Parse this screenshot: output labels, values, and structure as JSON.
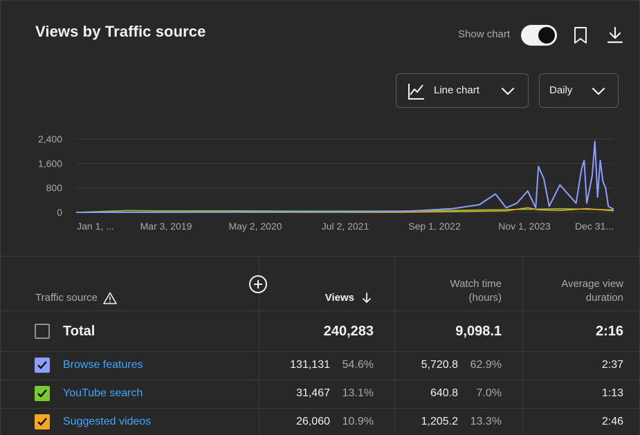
{
  "header": {
    "title": "Views by Traffic source",
    "show_chart_label": "Show chart"
  },
  "controls": {
    "chart_type_label": "Line chart",
    "interval_label": "Daily"
  },
  "colors": {
    "browse": "#8c9eff",
    "search": "#7cc832",
    "suggested": "#f5a623",
    "accent_link": "#3ea6ff"
  },
  "chart_data": {
    "type": "line",
    "y_ticks": [
      "2,400",
      "1,600",
      "800",
      "0"
    ],
    "ylim": [
      0,
      2400
    ],
    "x_ticks": [
      "Jan 1, ...",
      "Mar 3, 2019",
      "May 2, 2020",
      "Jul 2, 2021",
      "Sep 1, 2022",
      "Nov 1, 2023",
      "Dec 31..."
    ],
    "grid": true,
    "series": [
      {
        "key": "browse",
        "color": "#8c9eff",
        "x": [
          0,
          0.55,
          0.62,
          0.7,
          0.75,
          0.78,
          0.8,
          0.82,
          0.84,
          0.855,
          0.86,
          0.87,
          0.88,
          0.9,
          0.93,
          0.94,
          0.945,
          0.95,
          0.96,
          0.965,
          0.97,
          0.975,
          0.98,
          0.985,
          0.99,
          1.0
        ],
        "y": [
          0,
          20,
          40,
          120,
          250,
          600,
          150,
          300,
          700,
          150,
          1500,
          1100,
          200,
          900,
          300,
          1400,
          1700,
          300,
          1200,
          2320,
          500,
          1700,
          1000,
          800,
          200,
          100
        ]
      },
      {
        "key": "search",
        "color": "#7cc832",
        "x": [
          0,
          0.1,
          0.15,
          0.3,
          0.4,
          0.6,
          0.7,
          0.75,
          0.8,
          0.85,
          0.9,
          0.95,
          1.0
        ],
        "y": [
          0,
          60,
          50,
          50,
          40,
          40,
          60,
          80,
          90,
          100,
          120,
          100,
          80
        ]
      },
      {
        "key": "suggested",
        "color": "#f5a623",
        "x": [
          0,
          0.6,
          0.8,
          0.84,
          0.86,
          0.9,
          0.95,
          1.0
        ],
        "y": [
          0,
          0,
          50,
          150,
          80,
          60,
          120,
          50
        ]
      }
    ]
  },
  "table": {
    "columns": {
      "source": "Traffic source",
      "views": "Views",
      "watch_time_line1": "Watch time",
      "watch_time_line2": "(hours)",
      "avg_line1": "Average view",
      "avg_line2": "duration"
    },
    "total": {
      "label": "Total",
      "views": "240,283",
      "watch_time": "9,098.1",
      "avg_duration": "2:16"
    },
    "rows": [
      {
        "name": "Browse features",
        "views": "131,131",
        "views_pct": "54.6%",
        "watch_time": "5,720.8",
        "watch_pct": "62.9%",
        "avg_duration": "2:37",
        "color": "#8c9eff"
      },
      {
        "name": "YouTube search",
        "views": "31,467",
        "views_pct": "13.1%",
        "watch_time": "640.8",
        "watch_pct": "7.0%",
        "avg_duration": "1:13",
        "color": "#7cc832"
      },
      {
        "name": "Suggested videos",
        "views": "26,060",
        "views_pct": "10.9%",
        "watch_time": "1,205.2",
        "watch_pct": "13.3%",
        "avg_duration": "2:46",
        "color": "#f5a623"
      }
    ]
  }
}
